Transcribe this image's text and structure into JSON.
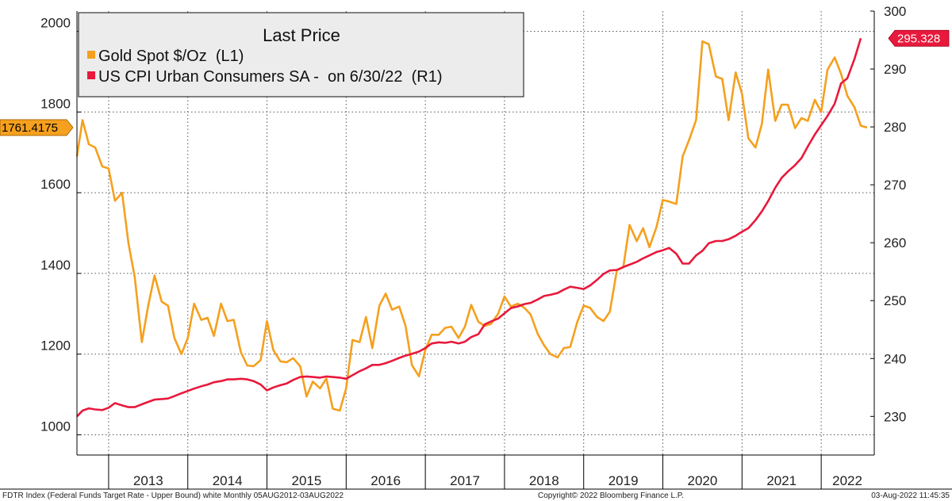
{
  "chart_data": {
    "type": "line",
    "legend": {
      "title": "Last Price",
      "placement": "top-left"
    },
    "left_axis": {
      "min": 950,
      "max": 2050,
      "ticks": [
        1000,
        1200,
        1400,
        1600,
        1800,
        2000
      ]
    },
    "right_axis": {
      "min": 223.333,
      "max": 300,
      "ticks": [
        230,
        240,
        250,
        260,
        270,
        280,
        290,
        300
      ]
    },
    "time_axis": {
      "start": 2012.6,
      "end": 2022.67,
      "boundaries": [
        2013.0,
        2014.0,
        2015.0,
        2016.0,
        2017.0,
        2018.0,
        2019.0,
        2020.0,
        2021.0,
        2022.0
      ],
      "year_labels": [
        {
          "label": "2013",
          "t": 2013.5
        },
        {
          "label": "2014",
          "t": 2014.5
        },
        {
          "label": "2015",
          "t": 2015.5
        },
        {
          "label": "2016",
          "t": 2016.5
        },
        {
          "label": "2017",
          "t": 2017.5
        },
        {
          "label": "2018",
          "t": 2018.5
        },
        {
          "label": "2019",
          "t": 2019.5
        },
        {
          "label": "2020",
          "t": 2020.5
        },
        {
          "label": "2021",
          "t": 2021.5
        },
        {
          "label": "2022",
          "t": 2022.33
        }
      ]
    },
    "grid": true,
    "series": [
      {
        "name": "Gold Spot $/Oz  (L1)",
        "axis": "left",
        "color": "#f5a01e",
        "last_value": "1761.4175",
        "points": [
          [
            2012.6,
            1690
          ],
          [
            2012.67,
            1780
          ],
          [
            2012.75,
            1720
          ],
          [
            2012.83,
            1712
          ],
          [
            2012.92,
            1665
          ],
          [
            2013.0,
            1660
          ],
          [
            2013.08,
            1580
          ],
          [
            2013.17,
            1600
          ],
          [
            2013.25,
            1475
          ],
          [
            2013.33,
            1390
          ],
          [
            2013.42,
            1230
          ],
          [
            2013.5,
            1320
          ],
          [
            2013.58,
            1395
          ],
          [
            2013.67,
            1330
          ],
          [
            2013.75,
            1320
          ],
          [
            2013.83,
            1240
          ],
          [
            2013.92,
            1200
          ],
          [
            2014.0,
            1240
          ],
          [
            2014.08,
            1325
          ],
          [
            2014.17,
            1285
          ],
          [
            2014.25,
            1290
          ],
          [
            2014.33,
            1245
          ],
          [
            2014.42,
            1325
          ],
          [
            2014.5,
            1282
          ],
          [
            2014.58,
            1285
          ],
          [
            2014.67,
            1205
          ],
          [
            2014.75,
            1172
          ],
          [
            2014.83,
            1170
          ],
          [
            2014.92,
            1185
          ],
          [
            2015.0,
            1282
          ],
          [
            2015.08,
            1210
          ],
          [
            2015.17,
            1182
          ],
          [
            2015.25,
            1180
          ],
          [
            2015.33,
            1190
          ],
          [
            2015.42,
            1170
          ],
          [
            2015.5,
            1095
          ],
          [
            2015.58,
            1132
          ],
          [
            2015.67,
            1115
          ],
          [
            2015.75,
            1140
          ],
          [
            2015.83,
            1065
          ],
          [
            2015.92,
            1060
          ],
          [
            2016.0,
            1115
          ],
          [
            2016.08,
            1235
          ],
          [
            2016.17,
            1230
          ],
          [
            2016.25,
            1292
          ],
          [
            2016.33,
            1215
          ],
          [
            2016.42,
            1320
          ],
          [
            2016.5,
            1350
          ],
          [
            2016.58,
            1310
          ],
          [
            2016.67,
            1318
          ],
          [
            2016.75,
            1270
          ],
          [
            2016.83,
            1173
          ],
          [
            2016.92,
            1145
          ],
          [
            2017.0,
            1210
          ],
          [
            2017.08,
            1248
          ],
          [
            2017.17,
            1248
          ],
          [
            2017.25,
            1265
          ],
          [
            2017.33,
            1268
          ],
          [
            2017.42,
            1240
          ],
          [
            2017.5,
            1268
          ],
          [
            2017.58,
            1322
          ],
          [
            2017.67,
            1280
          ],
          [
            2017.75,
            1270
          ],
          [
            2017.83,
            1275
          ],
          [
            2017.92,
            1300
          ],
          [
            2018.0,
            1343
          ],
          [
            2018.08,
            1318
          ],
          [
            2018.17,
            1325
          ],
          [
            2018.25,
            1315
          ],
          [
            2018.33,
            1298
          ],
          [
            2018.42,
            1250
          ],
          [
            2018.5,
            1222
          ],
          [
            2018.58,
            1200
          ],
          [
            2018.67,
            1192
          ],
          [
            2018.75,
            1215
          ],
          [
            2018.83,
            1218
          ],
          [
            2018.92,
            1280
          ],
          [
            2019.0,
            1320
          ],
          [
            2019.08,
            1315
          ],
          [
            2019.17,
            1292
          ],
          [
            2019.25,
            1282
          ],
          [
            2019.33,
            1305
          ],
          [
            2019.42,
            1408
          ],
          [
            2019.5,
            1415
          ],
          [
            2019.58,
            1520
          ],
          [
            2019.67,
            1480
          ],
          [
            2019.75,
            1512
          ],
          [
            2019.83,
            1465
          ],
          [
            2019.92,
            1515
          ],
          [
            2020.0,
            1582
          ],
          [
            2020.08,
            1578
          ],
          [
            2020.17,
            1572
          ],
          [
            2020.25,
            1690
          ],
          [
            2020.33,
            1730
          ],
          [
            2020.42,
            1780
          ],
          [
            2020.5,
            1975
          ],
          [
            2020.58,
            1968
          ],
          [
            2020.67,
            1888
          ],
          [
            2020.75,
            1882
          ],
          [
            2020.83,
            1780
          ],
          [
            2020.92,
            1898
          ],
          [
            2021.0,
            1845
          ],
          [
            2021.08,
            1735
          ],
          [
            2021.17,
            1712
          ],
          [
            2021.25,
            1770
          ],
          [
            2021.33,
            1905
          ],
          [
            2021.42,
            1778
          ],
          [
            2021.5,
            1818
          ],
          [
            2021.58,
            1818
          ],
          [
            2021.67,
            1760
          ],
          [
            2021.75,
            1785
          ],
          [
            2021.83,
            1778
          ],
          [
            2021.92,
            1830
          ],
          [
            2022.0,
            1800
          ],
          [
            2022.08,
            1905
          ],
          [
            2022.17,
            1935
          ],
          [
            2022.25,
            1895
          ],
          [
            2022.33,
            1840
          ],
          [
            2022.42,
            1812
          ],
          [
            2022.5,
            1766
          ],
          [
            2022.58,
            1761.4
          ]
        ]
      },
      {
        "name": "US CPI Urban Consumers SA -  on 6/30/22  (R1)",
        "axis": "right",
        "color": "#e8193c",
        "last_value": "295.328",
        "points": [
          [
            2012.6,
            230.0
          ],
          [
            2012.67,
            231.0
          ],
          [
            2012.75,
            231.4
          ],
          [
            2012.83,
            231.2
          ],
          [
            2012.92,
            231.1
          ],
          [
            2013.0,
            231.5
          ],
          [
            2013.08,
            232.3
          ],
          [
            2013.17,
            231.9
          ],
          [
            2013.25,
            231.6
          ],
          [
            2013.33,
            231.6
          ],
          [
            2013.42,
            232.1
          ],
          [
            2013.5,
            232.5
          ],
          [
            2013.58,
            232.9
          ],
          [
            2013.67,
            233.0
          ],
          [
            2013.75,
            233.1
          ],
          [
            2013.83,
            233.5
          ],
          [
            2013.92,
            234.0
          ],
          [
            2014.0,
            234.4
          ],
          [
            2014.08,
            234.8
          ],
          [
            2014.17,
            235.2
          ],
          [
            2014.25,
            235.5
          ],
          [
            2014.33,
            235.9
          ],
          [
            2014.42,
            236.1
          ],
          [
            2014.5,
            236.4
          ],
          [
            2014.58,
            236.4
          ],
          [
            2014.67,
            236.5
          ],
          [
            2014.75,
            236.4
          ],
          [
            2014.83,
            236.1
          ],
          [
            2014.92,
            235.5
          ],
          [
            2015.0,
            234.5
          ],
          [
            2015.08,
            235.0
          ],
          [
            2015.17,
            235.4
          ],
          [
            2015.25,
            235.7
          ],
          [
            2015.33,
            236.3
          ],
          [
            2015.42,
            236.8
          ],
          [
            2015.5,
            236.9
          ],
          [
            2015.58,
            236.8
          ],
          [
            2015.67,
            236.7
          ],
          [
            2015.75,
            236.9
          ],
          [
            2015.83,
            236.8
          ],
          [
            2015.92,
            236.7
          ],
          [
            2016.0,
            236.5
          ],
          [
            2016.08,
            237.1
          ],
          [
            2016.17,
            237.8
          ],
          [
            2016.25,
            238.3
          ],
          [
            2016.33,
            238.9
          ],
          [
            2016.42,
            238.9
          ],
          [
            2016.5,
            239.2
          ],
          [
            2016.58,
            239.6
          ],
          [
            2016.67,
            240.1
          ],
          [
            2016.75,
            240.5
          ],
          [
            2016.83,
            240.8
          ],
          [
            2016.92,
            241.2
          ],
          [
            2017.0,
            241.8
          ],
          [
            2017.08,
            242.6
          ],
          [
            2017.17,
            242.8
          ],
          [
            2017.25,
            242.7
          ],
          [
            2017.33,
            242.9
          ],
          [
            2017.42,
            242.6
          ],
          [
            2017.5,
            242.9
          ],
          [
            2017.58,
            243.7
          ],
          [
            2017.67,
            244.2
          ],
          [
            2017.75,
            245.9
          ],
          [
            2017.83,
            246.4
          ],
          [
            2017.92,
            246.9
          ],
          [
            2018.0,
            247.8
          ],
          [
            2018.08,
            248.7
          ],
          [
            2018.17,
            249.0
          ],
          [
            2018.25,
            249.4
          ],
          [
            2018.33,
            249.6
          ],
          [
            2018.42,
            250.2
          ],
          [
            2018.5,
            250.8
          ],
          [
            2018.58,
            251.0
          ],
          [
            2018.67,
            251.3
          ],
          [
            2018.75,
            251.9
          ],
          [
            2018.83,
            252.4
          ],
          [
            2018.92,
            252.2
          ],
          [
            2019.0,
            252.0
          ],
          [
            2019.08,
            252.6
          ],
          [
            2019.17,
            253.6
          ],
          [
            2019.25,
            254.6
          ],
          [
            2019.33,
            255.2
          ],
          [
            2019.42,
            255.3
          ],
          [
            2019.5,
            255.8
          ],
          [
            2019.58,
            256.2
          ],
          [
            2019.67,
            256.7
          ],
          [
            2019.75,
            257.3
          ],
          [
            2019.83,
            257.8
          ],
          [
            2019.92,
            258.4
          ],
          [
            2020.0,
            258.7
          ],
          [
            2020.08,
            259.1
          ],
          [
            2020.17,
            258.1
          ],
          [
            2020.25,
            256.4
          ],
          [
            2020.33,
            256.4
          ],
          [
            2020.42,
            257.8
          ],
          [
            2020.5,
            258.6
          ],
          [
            2020.58,
            259.9
          ],
          [
            2020.67,
            260.3
          ],
          [
            2020.75,
            260.3
          ],
          [
            2020.83,
            260.6
          ],
          [
            2020.92,
            261.2
          ],
          [
            2021.0,
            261.9
          ],
          [
            2021.08,
            262.5
          ],
          [
            2021.17,
            263.9
          ],
          [
            2021.25,
            265.4
          ],
          [
            2021.33,
            267.2
          ],
          [
            2021.42,
            269.5
          ],
          [
            2021.5,
            271.2
          ],
          [
            2021.58,
            272.3
          ],
          [
            2021.67,
            273.4
          ],
          [
            2021.75,
            274.6
          ],
          [
            2021.83,
            276.6
          ],
          [
            2021.92,
            278.7
          ],
          [
            2022.0,
            280.3
          ],
          [
            2022.08,
            281.9
          ],
          [
            2022.17,
            284.0
          ],
          [
            2022.25,
            287.5
          ],
          [
            2022.33,
            288.4
          ],
          [
            2022.42,
            291.7
          ],
          [
            2022.5,
            295.3
          ]
        ]
      }
    ]
  },
  "footer": {
    "left": "FDTR Index (Federal Funds Target Rate - Upper Bound) white  Monthly 05AUG2012-03AUG2022",
    "center": "Copyright© 2022 Bloomberg Finance L.P.",
    "right": "03-Aug-2022 11:45:35"
  }
}
